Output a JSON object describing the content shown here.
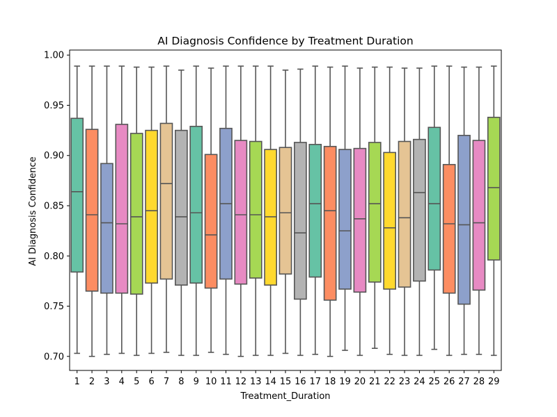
{
  "chart_data": {
    "type": "box",
    "title": "AI Diagnosis Confidence by Treatment Duration",
    "xlabel": "Treatment_Duration",
    "ylabel": "AI Diagnosis Confidence",
    "ylim": [
      0.686,
      1.005
    ],
    "yticks": [
      "0.70",
      "0.75",
      "0.80",
      "0.85",
      "0.90",
      "0.95",
      "1.00"
    ],
    "ytick_values": [
      0.7,
      0.75,
      0.8,
      0.85,
      0.9,
      0.95,
      1.0
    ],
    "palette": [
      "#66c2a5",
      "#fc8d62",
      "#8da0cb",
      "#e78ac3",
      "#a6d854",
      "#ffd92f",
      "#e5c494",
      "#b3b3b3"
    ],
    "edge_color": "#555555",
    "grid": false,
    "legend": "none",
    "categories": [
      "1",
      "2",
      "3",
      "4",
      "5",
      "6",
      "7",
      "8",
      "9",
      "10",
      "11",
      "12",
      "13",
      "14",
      "15",
      "16",
      "17",
      "18",
      "19",
      "20",
      "21",
      "22",
      "23",
      "24",
      "25",
      "26",
      "27",
      "28",
      "29"
    ],
    "boxes": [
      {
        "low": 0.703,
        "q1": 0.784,
        "median": 0.864,
        "q3": 0.937,
        "high": 0.989
      },
      {
        "low": 0.7,
        "q1": 0.765,
        "median": 0.841,
        "q3": 0.926,
        "high": 0.989
      },
      {
        "low": 0.702,
        "q1": 0.763,
        "median": 0.833,
        "q3": 0.892,
        "high": 0.989
      },
      {
        "low": 0.703,
        "q1": 0.763,
        "median": 0.832,
        "q3": 0.931,
        "high": 0.989
      },
      {
        "low": 0.701,
        "q1": 0.762,
        "median": 0.839,
        "q3": 0.922,
        "high": 0.988
      },
      {
        "low": 0.703,
        "q1": 0.773,
        "median": 0.845,
        "q3": 0.925,
        "high": 0.988
      },
      {
        "low": 0.704,
        "q1": 0.777,
        "median": 0.872,
        "q3": 0.932,
        "high": 0.989
      },
      {
        "low": 0.701,
        "q1": 0.771,
        "median": 0.839,
        "q3": 0.925,
        "high": 0.985
      },
      {
        "low": 0.701,
        "q1": 0.773,
        "median": 0.843,
        "q3": 0.929,
        "high": 0.989
      },
      {
        "low": 0.704,
        "q1": 0.768,
        "median": 0.821,
        "q3": 0.901,
        "high": 0.987
      },
      {
        "low": 0.702,
        "q1": 0.777,
        "median": 0.852,
        "q3": 0.927,
        "high": 0.989
      },
      {
        "low": 0.7,
        "q1": 0.772,
        "median": 0.841,
        "q3": 0.915,
        "high": 0.989
      },
      {
        "low": 0.701,
        "q1": 0.778,
        "median": 0.841,
        "q3": 0.914,
        "high": 0.989
      },
      {
        "low": 0.701,
        "q1": 0.771,
        "median": 0.839,
        "q3": 0.906,
        "high": 0.989
      },
      {
        "low": 0.703,
        "q1": 0.782,
        "median": 0.843,
        "q3": 0.908,
        "high": 0.985
      },
      {
        "low": 0.701,
        "q1": 0.757,
        "median": 0.823,
        "q3": 0.913,
        "high": 0.986
      },
      {
        "low": 0.702,
        "q1": 0.779,
        "median": 0.852,
        "q3": 0.911,
        "high": 0.989
      },
      {
        "low": 0.7,
        "q1": 0.756,
        "median": 0.845,
        "q3": 0.909,
        "high": 0.988
      },
      {
        "low": 0.706,
        "q1": 0.767,
        "median": 0.825,
        "q3": 0.906,
        "high": 0.989
      },
      {
        "low": 0.701,
        "q1": 0.764,
        "median": 0.837,
        "q3": 0.907,
        "high": 0.987
      },
      {
        "low": 0.708,
        "q1": 0.774,
        "median": 0.852,
        "q3": 0.913,
        "high": 0.988
      },
      {
        "low": 0.702,
        "q1": 0.767,
        "median": 0.828,
        "q3": 0.903,
        "high": 0.988
      },
      {
        "low": 0.701,
        "q1": 0.769,
        "median": 0.838,
        "q3": 0.914,
        "high": 0.987
      },
      {
        "low": 0.701,
        "q1": 0.775,
        "median": 0.863,
        "q3": 0.916,
        "high": 0.987
      },
      {
        "low": 0.707,
        "q1": 0.786,
        "median": 0.852,
        "q3": 0.928,
        "high": 0.989
      },
      {
        "low": 0.701,
        "q1": 0.763,
        "median": 0.832,
        "q3": 0.891,
        "high": 0.989
      },
      {
        "low": 0.702,
        "q1": 0.752,
        "median": 0.831,
        "q3": 0.92,
        "high": 0.988
      },
      {
        "low": 0.702,
        "q1": 0.766,
        "median": 0.833,
        "q3": 0.915,
        "high": 0.988
      },
      {
        "low": 0.701,
        "q1": 0.796,
        "median": 0.868,
        "q3": 0.938,
        "high": 0.989
      }
    ]
  }
}
